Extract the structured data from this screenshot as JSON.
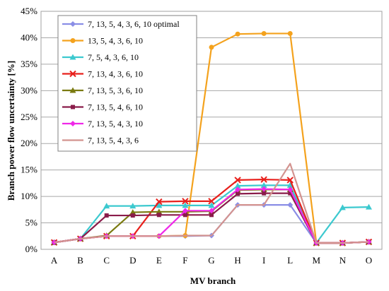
{
  "chart_data": {
    "type": "line",
    "title": "",
    "xlabel": "MV branch",
    "ylabel": "Branch power flow uncertainty  [%]",
    "categories": [
      "A",
      "B",
      "C",
      "D",
      "E",
      "F",
      "G",
      "H",
      "I",
      "L",
      "M",
      "N",
      "O"
    ],
    "ylim": [
      0,
      45
    ],
    "yticks": [
      "0%",
      "5%",
      "10%",
      "15%",
      "20%",
      "25%",
      "30%",
      "35%",
      "40%",
      "45%"
    ],
    "ytick_values": [
      0,
      5,
      10,
      15,
      20,
      25,
      30,
      35,
      40,
      45
    ],
    "grid": true,
    "legend_position": "top-left",
    "series": [
      {
        "name": "7, 13, 5, 4, 3, 6, 10 optimal",
        "color": "#8a8ee6",
        "marker": "diamond",
        "values": [
          1.3,
          2.0,
          2.5,
          2.5,
          2.5,
          2.5,
          2.6,
          8.4,
          8.4,
          8.4,
          1.2,
          1.2,
          1.4
        ]
      },
      {
        "name": "13, 5, 4, 3, 6, 10",
        "color": "#f4a21d",
        "marker": "circle",
        "values": [
          1.3,
          2.0,
          2.5,
          2.5,
          2.5,
          2.6,
          38.2,
          40.7,
          40.8,
          40.8,
          1.2,
          1.2,
          1.4
        ]
      },
      {
        "name": "7, 5, 4, 3, 6, 10",
        "color": "#3cc9cf",
        "marker": "triangle",
        "values": [
          1.3,
          2.0,
          8.2,
          8.2,
          8.3,
          8.3,
          8.3,
          12.0,
          12.1,
          12.1,
          1.2,
          7.9,
          8.0
        ]
      },
      {
        "name": "7, 13, 4, 3, 6, 10",
        "color": "#e8201c",
        "marker": "cross",
        "values": [
          1.3,
          2.0,
          2.5,
          2.5,
          9.0,
          9.1,
          9.1,
          13.1,
          13.2,
          13.1,
          1.2,
          1.2,
          1.4
        ]
      },
      {
        "name": "7, 13, 5, 3, 6, 10",
        "color": "#7a7a10",
        "marker": "triangle",
        "values": [
          1.3,
          2.0,
          2.6,
          7.0,
          7.1,
          7.1,
          7.2,
          11.2,
          11.3,
          11.3,
          1.2,
          1.2,
          1.4
        ]
      },
      {
        "name": "7, 13, 5, 4, 6, 10",
        "color": "#8a1c4a",
        "marker": "square",
        "values": [
          1.3,
          2.0,
          6.4,
          6.4,
          6.5,
          6.5,
          6.5,
          10.5,
          10.6,
          10.6,
          1.2,
          1.2,
          1.4
        ]
      },
      {
        "name": "7, 13, 5, 4, 3, 10",
        "color": "#ef28e8",
        "marker": "diamond",
        "values": [
          1.3,
          2.0,
          2.5,
          2.5,
          2.5,
          7.3,
          7.3,
          11.3,
          11.4,
          11.3,
          1.2,
          1.2,
          1.4
        ]
      },
      {
        "name": "7, 13, 5, 4, 3, 6",
        "color": "#d3938f",
        "marker": "none",
        "values": [
          1.3,
          2.0,
          2.5,
          2.5,
          2.5,
          2.6,
          2.6,
          8.4,
          8.4,
          16.2,
          1.2,
          1.2,
          1.4
        ]
      }
    ]
  }
}
